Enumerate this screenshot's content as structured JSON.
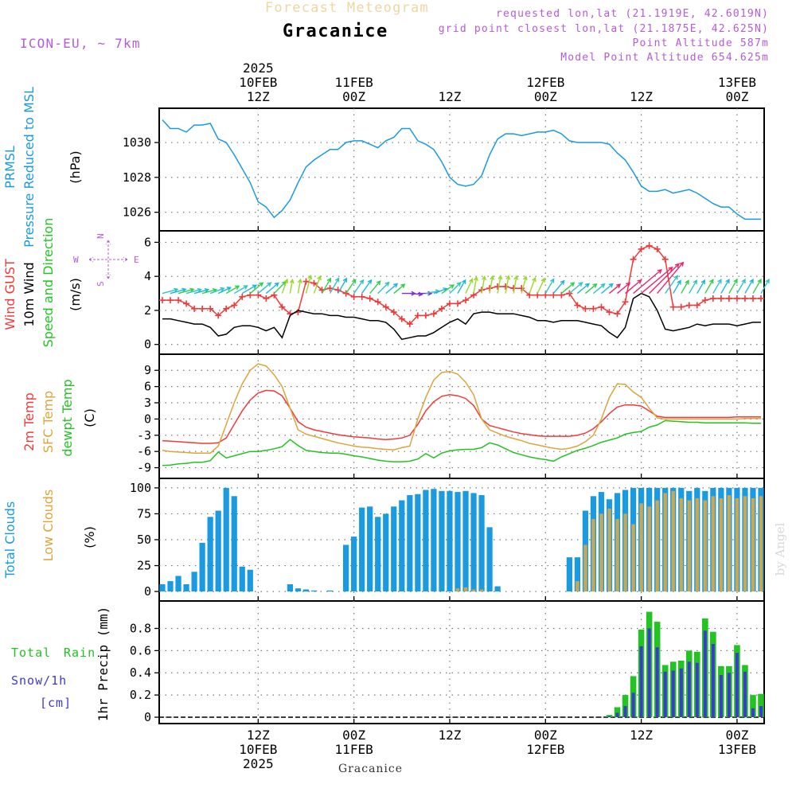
{
  "header": {
    "product": "Forecast Meteogram",
    "location": "Gracanice",
    "model": "ICON-EU, ~ 7km",
    "requested": "requested lon,lat (21.1919E, 42.6019N)",
    "gridpoint": "grid point closest lon,lat (21.1875E, 42.625N)",
    "point_alt": "Point Altitude 587m",
    "model_alt": "Model Point Altitude 654.625m",
    "footer_location": "Gracanice",
    "watermark": "by Angel"
  },
  "colors": {
    "blue": "#1a9ae0",
    "red": "#f03a3a",
    "black": "#000000",
    "green": "#22c322",
    "orange": "#dca53c",
    "navy": "#3c3ccc",
    "magenta": "#b35cd6",
    "pink": "#e8256e",
    "cloudlow": "#c8a855"
  },
  "time_axis": {
    "top_ticks": [
      [
        "2025",
        "10FEB",
        "12Z"
      ],
      [
        "11FEB",
        "00Z"
      ],
      [
        "12Z"
      ],
      [
        "12FEB",
        "00Z"
      ],
      [
        "12Z"
      ],
      [
        "13FEB",
        "00Z"
      ]
    ],
    "bottom_ticks": [
      [
        "12Z",
        "10FEB",
        "2025"
      ],
      [
        "00Z",
        "11FEB"
      ],
      [
        "12Z"
      ],
      [
        "00Z",
        "12FEB"
      ],
      [
        "12Z"
      ],
      [
        "00Z",
        "13FEB"
      ]
    ],
    "tick_hours": [
      12,
      24,
      36,
      48,
      60,
      72
    ],
    "hours": [
      0,
      1,
      2,
      3,
      4,
      5,
      6,
      7,
      8,
      9,
      10,
      11,
      12,
      13,
      14,
      15,
      16,
      17,
      18,
      19,
      20,
      21,
      22,
      23,
      24,
      25,
      26,
      27,
      28,
      29,
      30,
      31,
      32,
      33,
      34,
      35,
      36,
      37,
      38,
      39,
      40,
      41,
      42,
      43,
      44,
      45,
      46,
      47,
      48,
      49,
      50,
      51,
      52,
      53,
      54,
      55,
      56,
      57,
      58,
      59,
      60,
      61,
      62,
      63,
      64,
      65,
      66,
      67,
      68,
      69,
      70,
      71,
      72,
      73,
      74,
      75
    ]
  },
  "chart_data": [
    {
      "type": "line",
      "panel": "pressure",
      "ylabels": [
        "PRMSL",
        "Pressure Reduced to MSL",
        "(hPa)"
      ],
      "ylim": [
        1025.3,
        1031.6
      ],
      "yticks": [
        1026,
        1028,
        1030
      ],
      "series": [
        {
          "name": "Pressure Reduced to MSL",
          "color": "blue",
          "values": [
            1031.3,
            1030.8,
            1030.8,
            1030.6,
            1031.0,
            1031.0,
            1031.1,
            1030.2,
            1030.0,
            1029.3,
            1028.5,
            1027.7,
            1026.6,
            1026.3,
            1025.7,
            1026.1,
            1026.7,
            1027.7,
            1028.6,
            1029.0,
            1029.3,
            1029.6,
            1029.6,
            1030.0,
            1030.1,
            1030.1,
            1029.9,
            1029.7,
            1030.1,
            1030.3,
            1030.8,
            1030.8,
            1030.1,
            1029.9,
            1029.6,
            1028.9,
            1028.0,
            1027.6,
            1027.5,
            1027.6,
            1028.1,
            1029.3,
            1030.2,
            1030.5,
            1030.5,
            1030.4,
            1030.5,
            1030.6,
            1030.6,
            1030.7,
            1030.5,
            1030.1,
            1030.0,
            1030.0,
            1030.0,
            1030.0,
            1029.9,
            1029.4,
            1029.0,
            1028.3,
            1027.5,
            1027.2,
            1027.2,
            1027.3,
            1027.1,
            1027.2,
            1027.3,
            1027.1,
            1026.8,
            1026.5,
            1026.3,
            1026.3,
            1025.9,
            1025.6,
            1025.6,
            1025.6
          ]
        }
      ]
    },
    {
      "type": "line",
      "panel": "wind",
      "ylabels": [
        "Wind GUST",
        "10m Wind",
        "Speed and Direction",
        "(m/s)"
      ],
      "compass": {
        "n": "N",
        "w": "W",
        "e": "E",
        "s": "S"
      },
      "ylim": [
        -0.2,
        6.3
      ],
      "yticks": [
        0,
        2,
        4,
        6
      ],
      "series": [
        {
          "name": "Wind GUST",
          "color": "red",
          "marker": "+",
          "values": [
            2.6,
            2.6,
            2.6,
            2.4,
            2.1,
            2.1,
            2.1,
            1.7,
            2.1,
            2.3,
            2.8,
            2.9,
            2.9,
            2.7,
            2.9,
            2.2,
            1.8,
            1.9,
            3.7,
            3.6,
            3.2,
            3.3,
            3.2,
            3.0,
            2.8,
            2.8,
            2.7,
            2.5,
            2.2,
            1.9,
            1.5,
            1.2,
            1.7,
            1.7,
            1.8,
            2.1,
            2.4,
            2.4,
            2.6,
            2.9,
            3.2,
            3.3,
            3.4,
            3.4,
            3.3,
            3.3,
            2.9,
            2.9,
            2.9,
            2.9,
            2.9,
            3.0,
            2.3,
            2.1,
            2.1,
            2.2,
            1.9,
            1.8,
            2.5,
            5.0,
            5.6,
            5.8,
            5.6,
            5.0,
            2.2,
            2.2,
            2.3,
            2.3,
            2.6,
            2.7,
            2.7,
            2.7,
            2.7,
            2.7,
            2.7,
            2.7
          ]
        },
        {
          "name": "10m Wind",
          "color": "black",
          "values": [
            1.5,
            1.5,
            1.4,
            1.3,
            1.2,
            1.2,
            1.0,
            0.5,
            0.6,
            1.0,
            1.1,
            1.1,
            1.0,
            0.8,
            1.0,
            0.4,
            1.7,
            2.0,
            1.9,
            1.8,
            1.8,
            1.7,
            1.7,
            1.6,
            1.6,
            1.5,
            1.4,
            1.4,
            1.3,
            0.9,
            0.3,
            0.4,
            0.5,
            0.5,
            0.7,
            1.0,
            1.3,
            1.5,
            1.2,
            1.8,
            1.9,
            1.9,
            1.8,
            1.8,
            1.8,
            1.7,
            1.6,
            1.4,
            1.4,
            1.3,
            1.4,
            1.4,
            1.4,
            1.3,
            1.2,
            1.1,
            0.7,
            0.4,
            1.0,
            2.7,
            3.0,
            2.8,
            2.0,
            0.9,
            0.8,
            0.9,
            1.0,
            1.2,
            1.1,
            1.2,
            1.2,
            1.2,
            1.1,
            1.2,
            1.3,
            1.3
          ]
        },
        {
          "name": "Speed and Direction",
          "color": "green",
          "marker": "arrow",
          "angles_deg": [
            15,
            15,
            15,
            15,
            15,
            15,
            20,
            25,
            30,
            30,
            30,
            40,
            40,
            40,
            45,
            70,
            80,
            80,
            75,
            70,
            60,
            60,
            60,
            55,
            55,
            55,
            50,
            45,
            40,
            40,
            0,
            -5,
            0,
            10,
            20,
            35,
            45,
            60,
            65,
            80,
            80,
            80,
            80,
            80,
            80,
            75,
            70,
            65,
            60,
            50,
            40,
            40,
            40,
            40,
            40,
            40,
            40,
            40,
            40,
            40,
            40,
            45,
            50,
            55,
            60,
            60,
            60,
            60,
            60,
            60,
            60,
            60,
            60,
            60,
            60,
            60
          ]
        }
      ]
    },
    {
      "type": "line",
      "panel": "temperature",
      "ylabels": [
        "2m Temp",
        "SFC Temp",
        "dewpt Temp",
        "(C)"
      ],
      "ylim": [
        -9.8,
        10.8
      ],
      "yticks": [
        -9,
        -6,
        -3,
        0,
        3,
        6,
        9
      ],
      "series": [
        {
          "name": "2m Temp",
          "color": "red",
          "values": [
            -4.0,
            -4.1,
            -4.2,
            -4.3,
            -4.4,
            -4.5,
            -4.5,
            -4.4,
            -3.5,
            -1.0,
            1.5,
            3.5,
            4.8,
            5.3,
            5.2,
            4.3,
            2.0,
            -0.5,
            -1.5,
            -2.0,
            -2.3,
            -2.6,
            -2.9,
            -3.1,
            -3.3,
            -3.4,
            -3.5,
            -3.7,
            -3.8,
            -3.7,
            -3.5,
            -3.0,
            -1.0,
            1.5,
            3.2,
            4.2,
            4.5,
            4.3,
            3.8,
            2.5,
            0.0,
            -1.2,
            -1.6,
            -2.0,
            -2.4,
            -2.7,
            -2.9,
            -3.1,
            -3.2,
            -3.2,
            -3.2,
            -3.2,
            -3.0,
            -2.6,
            -1.8,
            -0.5,
            1.0,
            2.2,
            2.6,
            2.6,
            2.4,
            1.5,
            0.5,
            0.3,
            0.3,
            0.3,
            0.3,
            0.3,
            0.3,
            0.3,
            0.3,
            0.3,
            0.4,
            0.4,
            0.4,
            0.4
          ]
        },
        {
          "name": "SFC Temp",
          "color": "orange",
          "values": [
            -5.8,
            -6.0,
            -6.1,
            -6.2,
            -6.3,
            -6.3,
            -6.3,
            -5.0,
            -1.0,
            3.0,
            6.5,
            9.0,
            10.2,
            9.8,
            8.2,
            6.0,
            2.0,
            -2.0,
            -2.8,
            -3.2,
            -3.6,
            -4.0,
            -4.4,
            -4.7,
            -5.0,
            -5.2,
            -5.3,
            -5.5,
            -5.6,
            -5.7,
            -5.3,
            -5.0,
            0.0,
            4.0,
            7.2,
            8.6,
            8.8,
            8.3,
            6.8,
            4.5,
            0.0,
            -2.0,
            -2.6,
            -3.2,
            -3.6,
            -4.0,
            -4.5,
            -4.8,
            -5.1,
            -5.4,
            -5.6,
            -5.4,
            -5.0,
            -4.2,
            -3.0,
            0.0,
            4.0,
            6.5,
            6.4,
            5.0,
            4.0,
            2.0,
            0.2,
            0.0,
            0.0,
            0.0,
            0.0,
            0.0,
            0.0,
            0.0,
            0.0,
            0.0,
            0.0,
            0.1,
            0.1,
            0.1
          ]
        },
        {
          "name": "dewpt Temp",
          "color": "green",
          "values": [
            -8.6,
            -8.5,
            -8.3,
            -8.2,
            -8.0,
            -8.0,
            -7.7,
            -6.1,
            -7.2,
            -6.8,
            -6.4,
            -6.0,
            -6.0,
            -5.8,
            -5.5,
            -5.1,
            -3.8,
            -4.9,
            -5.8,
            -6.0,
            -6.2,
            -6.3,
            -6.3,
            -6.5,
            -6.8,
            -7.0,
            -7.3,
            -7.6,
            -7.8,
            -7.9,
            -7.9,
            -7.8,
            -7.4,
            -6.4,
            -7.2,
            -6.3,
            -5.9,
            -5.7,
            -5.6,
            -5.6,
            -5.3,
            -4.4,
            -4.8,
            -5.5,
            -6.2,
            -6.6,
            -7.0,
            -7.3,
            -7.5,
            -7.8,
            -7.0,
            -6.4,
            -5.8,
            -5.4,
            -4.9,
            -4.3,
            -3.9,
            -3.5,
            -2.8,
            -2.5,
            -2.3,
            -1.5,
            -1.1,
            -0.3,
            -0.4,
            -0.5,
            -0.6,
            -0.6,
            -0.7,
            -0.7,
            -0.7,
            -0.7,
            -0.7,
            -0.7,
            -0.8,
            -0.8
          ]
        }
      ]
    },
    {
      "type": "bar",
      "panel": "clouds",
      "ylabels": [
        "Total Clouds",
        "Low Clouds",
        "(%)"
      ],
      "ylim": [
        -3,
        103
      ],
      "yticks": [
        0,
        25,
        50,
        75,
        100
      ],
      "series": [
        {
          "name": "Total Clouds",
          "color": "blue",
          "values": [
            7,
            10,
            15,
            7,
            19,
            47,
            72,
            78,
            100,
            92,
            24,
            21,
            0,
            0,
            0,
            0,
            7,
            3,
            2,
            1,
            0,
            1,
            0,
            45,
            53,
            81,
            82,
            72,
            75,
            82,
            88,
            93,
            94,
            98,
            99,
            97,
            97,
            96,
            97,
            95,
            93,
            62,
            5,
            0,
            0,
            0,
            0,
            0,
            0,
            0,
            0,
            33,
            33,
            78,
            92,
            96,
            89,
            95,
            98,
            100,
            100,
            100,
            100,
            100,
            100,
            100,
            97,
            100,
            97,
            100,
            100,
            100,
            100,
            100,
            100,
            100
          ]
        },
        {
          "name": "Low Clouds",
          "color": "cloudlow",
          "values": [
            0,
            0,
            0,
            0,
            0,
            0,
            0,
            0,
            0,
            0,
            0,
            0,
            0,
            0,
            0,
            0,
            0,
            0,
            0,
            0,
            0,
            0,
            0,
            0,
            0,
            0,
            0,
            0,
            0,
            0,
            0,
            0,
            0,
            0,
            0,
            0,
            0,
            3,
            4,
            2,
            2,
            0,
            0,
            0,
            0,
            0,
            0,
            0,
            0,
            0,
            0,
            0,
            10,
            45,
            70,
            75,
            80,
            70,
            75,
            65,
            85,
            82,
            88,
            95,
            97,
            90,
            88,
            90,
            88,
            92,
            90,
            93,
            90,
            92,
            90,
            92
          ]
        }
      ]
    },
    {
      "type": "bar",
      "panel": "precip",
      "ylabels": [
        "Total Rain",
        "Snow/1h",
        "[cm]",
        "1hr Precip (mm)"
      ],
      "ylim": [
        0,
        0.99
      ],
      "yticks": [
        0,
        0.2,
        0.4,
        0.6,
        0.8
      ],
      "series": [
        {
          "name": "Total Rain",
          "color": "green",
          "values": [
            0,
            0,
            0,
            0,
            0,
            0,
            0,
            0,
            0,
            0,
            0,
            0,
            0,
            0,
            0,
            0,
            0,
            0,
            0,
            0,
            0,
            0,
            0,
            0,
            0,
            0,
            0,
            0,
            0,
            0,
            0,
            0,
            0,
            0,
            0,
            0,
            0,
            0,
            0,
            0,
            0,
            0,
            0,
            0,
            0,
            0,
            0,
            0,
            0,
            0,
            0,
            0,
            0,
            0,
            0,
            0,
            0.02,
            0.09,
            0.2,
            0.37,
            0.79,
            0.95,
            0.86,
            0.47,
            0.5,
            0.51,
            0.6,
            0.59,
            0.89,
            0.77,
            0.46,
            0.46,
            0.65,
            0.47,
            0.2,
            0.21
          ]
        },
        {
          "name": "Snow/1h",
          "color": "navy",
          "values": [
            0,
            0,
            0,
            0,
            0,
            0,
            0,
            0,
            0,
            0,
            0,
            0,
            0,
            0,
            0,
            0,
            0,
            0,
            0,
            0,
            0,
            0,
            0,
            0,
            0,
            0,
            0,
            0,
            0,
            0,
            0,
            0,
            0,
            0,
            0,
            0,
            0,
            0,
            0,
            0,
            0,
            0,
            0,
            0,
            0,
            0,
            0,
            0,
            0,
            0,
            0,
            0,
            0,
            0,
            0,
            0,
            0.01,
            0.04,
            0.1,
            0.22,
            0.64,
            0.8,
            0.63,
            0.41,
            0.42,
            0.44,
            0.5,
            0.49,
            0.78,
            0.66,
            0.38,
            0.4,
            0.58,
            0.41,
            0.08,
            0.1
          ]
        }
      ]
    }
  ]
}
